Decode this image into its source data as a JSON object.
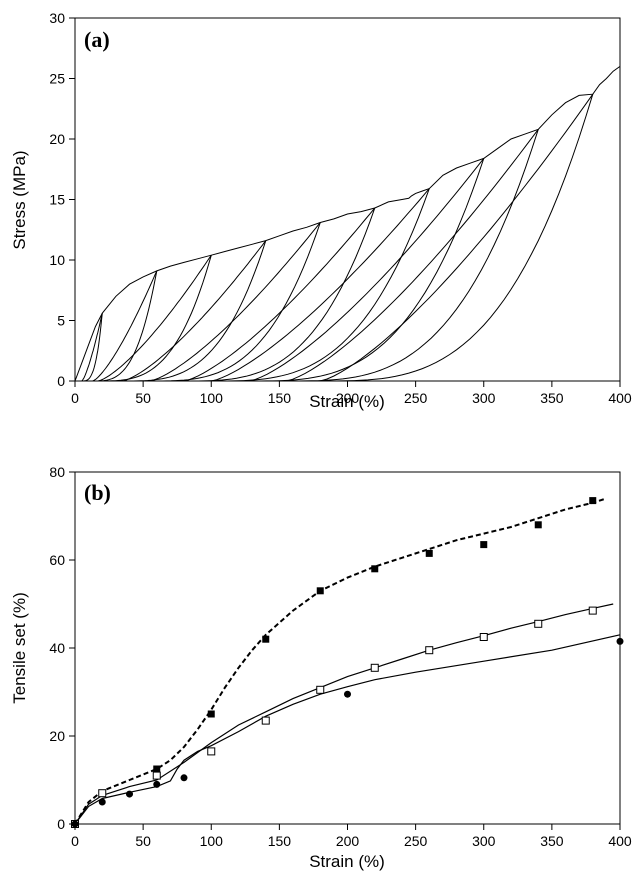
{
  "chart_data": [
    {
      "type": "line",
      "panel_label": "(a)",
      "xlabel": "Strain (%)",
      "ylabel": "Stress (MPa)",
      "xlim": [
        0,
        400
      ],
      "ylim": [
        0,
        30
      ],
      "xticks": [
        0,
        50,
        100,
        150,
        200,
        250,
        300,
        350,
        400
      ],
      "yticks": [
        0,
        5,
        10,
        15,
        20,
        25,
        30
      ],
      "grid": false,
      "series": [
        {
          "role": "loading-envelope",
          "x": [
            0,
            5,
            10,
            15,
            20,
            30,
            40,
            50,
            60,
            70,
            80,
            90,
            100,
            110,
            120,
            130,
            140,
            150,
            160,
            170,
            180,
            190,
            200,
            210,
            220,
            230,
            240,
            245,
            247,
            250,
            255,
            260,
            270,
            280,
            290,
            300,
            310,
            320,
            330,
            340,
            350,
            360,
            370,
            380,
            385,
            390,
            395,
            400
          ],
          "y": [
            0,
            1.5,
            3.0,
            4.5,
            5.6,
            7.0,
            8.0,
            8.6,
            9.1,
            9.5,
            9.8,
            10.1,
            10.4,
            10.7,
            11.0,
            11.3,
            11.6,
            12.0,
            12.4,
            12.7,
            13.1,
            13.4,
            13.8,
            14.0,
            14.3,
            14.8,
            15.0,
            15.1,
            15.3,
            15.5,
            15.7,
            15.9,
            17.0,
            17.6,
            18.0,
            18.4,
            19.2,
            20.0,
            20.4,
            20.8,
            22.0,
            23.0,
            23.6,
            23.7,
            24.5,
            25.0,
            25.6,
            26.0
          ]
        },
        {
          "role": "unload-reload-cycles",
          "cycles": [
            {
              "max_strain": 20,
              "max_stress": 5.6,
              "residual_strain": 5
            },
            {
              "max_strain": 60,
              "max_stress": 9.1,
              "residual_strain": 13
            },
            {
              "max_strain": 100,
              "max_stress": 10.4,
              "residual_strain": 17
            },
            {
              "max_strain": 140,
              "max_stress": 11.6,
              "residual_strain": 35
            },
            {
              "max_strain": 180,
              "max_stress": 13.1,
              "residual_strain": 55
            },
            {
              "max_strain": 220,
              "max_stress": 14.3,
              "residual_strain": 80
            },
            {
              "max_strain": 260,
              "max_stress": 15.9,
              "residual_strain": 100
            },
            {
              "max_strain": 300,
              "max_stress": 18.4,
              "residual_strain": 128
            },
            {
              "max_strain": 340,
              "max_stress": 20.8,
              "residual_strain": 155
            },
            {
              "max_strain": 380,
              "max_stress": 23.7,
              "residual_strain": 180
            }
          ]
        }
      ]
    },
    {
      "type": "scatter",
      "panel_label": "(b)",
      "xlabel": "Strain (%)",
      "ylabel": "Tensile set (%)",
      "xlim": [
        0,
        400
      ],
      "ylim": [
        0,
        80
      ],
      "xticks": [
        0,
        50,
        100,
        150,
        200,
        250,
        300,
        350,
        400
      ],
      "yticks": [
        0,
        20,
        40,
        60,
        80
      ],
      "grid": false,
      "series": [
        {
          "marker": "filled-square",
          "line": "dashed",
          "x": [
            0,
            20,
            60,
            100,
            140,
            180,
            220,
            260,
            300,
            340,
            380
          ],
          "y": [
            0,
            7,
            12.5,
            25,
            42,
            53,
            58,
            61.5,
            63.5,
            68,
            73.5
          ],
          "fit_x": [
            0,
            10,
            20,
            40,
            60,
            70,
            80,
            90,
            100,
            110,
            120,
            130,
            140,
            160,
            180,
            200,
            220,
            240,
            260,
            280,
            300,
            320,
            340,
            360,
            380,
            390
          ],
          "fit_y": [
            0,
            5,
            7.5,
            10,
            12.5,
            14.5,
            17.5,
            21.5,
            26,
            31,
            35.5,
            39.5,
            43,
            48.5,
            53,
            56,
            58.5,
            60.5,
            62.5,
            64.5,
            66,
            67.5,
            69.5,
            71.5,
            73,
            74
          ]
        },
        {
          "marker": "open-square",
          "line": "solid",
          "x": [
            0,
            20,
            60,
            100,
            140,
            180,
            220,
            260,
            300,
            340,
            380
          ],
          "y": [
            0,
            7,
            11,
            16.5,
            23.5,
            30.5,
            35.5,
            39.5,
            42.5,
            45.5,
            48.5
          ],
          "fit_x": [
            0,
            10,
            20,
            40,
            60,
            80,
            100,
            120,
            140,
            160,
            180,
            200,
            220,
            240,
            260,
            280,
            300,
            320,
            340,
            360,
            380,
            395
          ],
          "fit_y": [
            0,
            4.5,
            6.5,
            8.5,
            10,
            14,
            18.5,
            22.5,
            25.5,
            28.5,
            31,
            33.5,
            35.5,
            37.5,
            39.5,
            41.2,
            42.8,
            44.5,
            46,
            47.6,
            49,
            50
          ]
        },
        {
          "marker": "filled-circle",
          "line": "solid",
          "x": [
            0,
            20,
            40,
            60,
            80,
            200,
            400
          ],
          "y": [
            0,
            5,
            6.8,
            9,
            10.5,
            29.5,
            41.5
          ],
          "fit_x": [
            0,
            10,
            20,
            40,
            60,
            70,
            75,
            80,
            90,
            100,
            120,
            140,
            160,
            180,
            200,
            220,
            250,
            300,
            350,
            400
          ],
          "fit_y": [
            0,
            4,
            5.8,
            7.2,
            8.5,
            9.8,
            12.5,
            14.5,
            16.5,
            17.8,
            21,
            24.5,
            27.2,
            29.5,
            31.2,
            32.8,
            34.5,
            37,
            39.5,
            43
          ]
        }
      ]
    }
  ]
}
